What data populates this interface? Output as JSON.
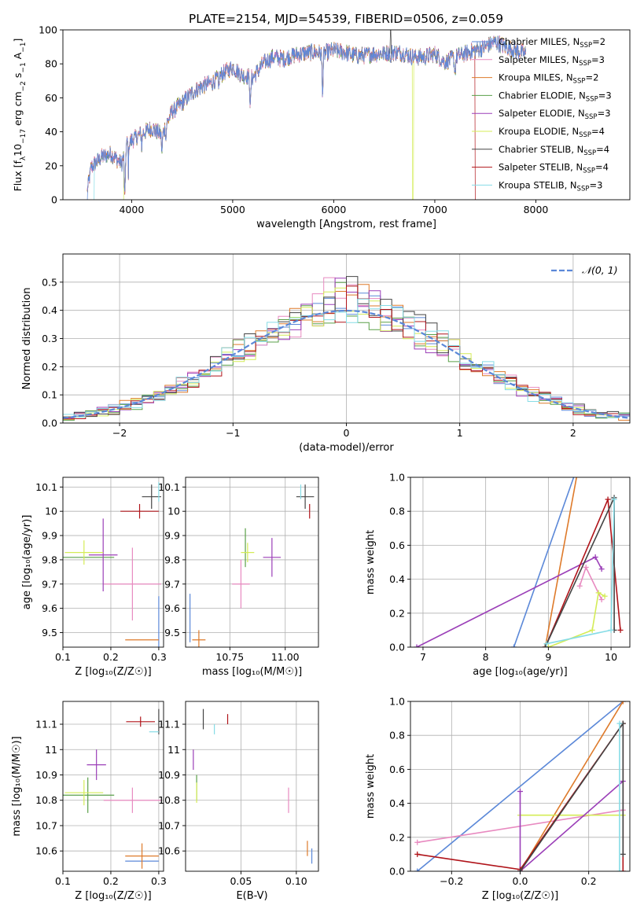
{
  "figure_title": "PLATE=2154, MJD=54539, FIBERID=0506, z=0.059",
  "series": [
    {
      "name": "Chabrier MILES",
      "nssp": "2",
      "color": "#5b88d8"
    },
    {
      "name": "Salpeter MILES",
      "nssp": "3",
      "color": "#e88ac0"
    },
    {
      "name": "Kroupa MILES",
      "nssp": "2",
      "color": "#de7a2a"
    },
    {
      "name": "Chabrier ELODIE",
      "nssp": "3",
      "color": "#5aa048"
    },
    {
      "name": "Salpeter ELODIE",
      "nssp": "3",
      "color": "#9b3fb8"
    },
    {
      "name": "Kroupa ELODIE",
      "nssp": "4",
      "color": "#d4ec57"
    },
    {
      "name": "Chabrier STELIB",
      "nssp": "4",
      "color": "#444444"
    },
    {
      "name": "Salpeter STELIB",
      "nssp": "4",
      "color": "#b0141a"
    },
    {
      "name": "Kroupa STELIB",
      "nssp": "3",
      "color": "#86dce6"
    }
  ],
  "chart_data": [
    {
      "id": "spectrum",
      "type": "line",
      "xlabel": "wavelength [Angstrom, rest frame]",
      "ylabel_prefix": "Flux [f",
      "ylabel_sub": "λ",
      "ylabel_mid": "10",
      "ylabel_sup1": "−17",
      "ylabel_rest": " erg cm",
      "ylabel_sup2": "−2",
      "ylabel_s": " s",
      "ylabel_sup3": "−1",
      "ylabel_A": " A",
      "ylabel_sup4": "−1",
      "ylabel_end": "]",
      "xlim": [
        3320,
        8930
      ],
      "ylim": [
        0,
        100
      ],
      "xticks": [
        4000,
        5000,
        6000,
        7000,
        8000
      ],
      "yticks": [
        0,
        20,
        40,
        60,
        80,
        100
      ],
      "legend_position": "right",
      "continuum": [
        [
          3560,
          5
        ],
        [
          3600,
          19
        ],
        [
          3700,
          25
        ],
        [
          3800,
          27
        ],
        [
          3900,
          21
        ],
        [
          3950,
          33
        ],
        [
          4100,
          39
        ],
        [
          4200,
          42
        ],
        [
          4300,
          38
        ],
        [
          4400,
          52
        ],
        [
          4500,
          57
        ],
        [
          4600,
          63
        ],
        [
          4700,
          67
        ],
        [
          4800,
          69
        ],
        [
          4900,
          74
        ],
        [
          5000,
          78
        ],
        [
          5100,
          73
        ],
        [
          5200,
          72
        ],
        [
          5300,
          80
        ],
        [
          5400,
          84
        ],
        [
          5500,
          83
        ],
        [
          5600,
          85
        ],
        [
          5700,
          86
        ],
        [
          5800,
          87
        ],
        [
          5900,
          86
        ],
        [
          6000,
          88
        ],
        [
          6100,
          87
        ],
        [
          6200,
          85
        ],
        [
          6300,
          85
        ],
        [
          6400,
          86
        ],
        [
          6500,
          86
        ],
        [
          6600,
          87
        ],
        [
          6700,
          86
        ],
        [
          6800,
          84
        ],
        [
          6900,
          84
        ],
        [
          7000,
          86
        ],
        [
          7100,
          81
        ],
        [
          7200,
          84
        ],
        [
          7300,
          86
        ],
        [
          7400,
          88
        ],
        [
          7500,
          90
        ],
        [
          7600,
          93
        ],
        [
          7700,
          90
        ],
        [
          7800,
          88
        ],
        [
          7900,
          86
        ]
      ],
      "dips": [
        [
          3933,
          5,
          28
        ],
        [
          3968,
          3,
          18
        ],
        [
          4101,
          3,
          8
        ],
        [
          4300,
          4,
          10
        ],
        [
          4340,
          3,
          8
        ],
        [
          4861,
          3,
          8
        ],
        [
          5175,
          5,
          18
        ],
        [
          5890,
          5,
          22
        ],
        [
          6563,
          3,
          8
        ],
        [
          7200,
          6,
          8
        ]
      ],
      "dropouts": [
        {
          "series": 0,
          "x_end": 3560
        },
        {
          "series": 5,
          "x_end": 3920
        },
        {
          "series": 5,
          "x_start": 6780,
          "x_end": 6790
        },
        {
          "series": 7,
          "x_start": 7400
        },
        {
          "series": 8,
          "x_end": 3630
        }
      ]
    },
    {
      "id": "residual_hist",
      "type": "histogram",
      "xlabel": "(data-model)/error",
      "ylabel": "Normed distribution",
      "xlim": [
        -2.5,
        2.5
      ],
      "ylim": [
        0,
        0.6
      ],
      "xticks": [
        -2,
        -1,
        0,
        1,
        2
      ],
      "yticks": [
        0.0,
        0.1,
        0.2,
        0.3,
        0.4,
        0.5
      ],
      "bin_start": -2.5,
      "bin_width": 0.1,
      "legend_label": "𝒩(0, 1)",
      "legend_position": "top-right",
      "gauss_color": "#5b88d8"
    },
    {
      "id": "age_vs_Z",
      "type": "errorbar",
      "xlabel": "Z [log₁₀(Z/Z☉)]",
      "ylabel": "age  [log₁₀(age/yr)]",
      "xlim": [
        0.1,
        0.31
      ],
      "ylim": [
        9.44,
        10.14
      ],
      "xticks": [
        0.1,
        0.2,
        0.3
      ],
      "yticks": [
        9.5,
        9.6,
        9.7,
        9.8,
        9.9,
        10.0,
        10.1
      ],
      "points": [
        {
          "s": 0,
          "x": 0.3,
          "y": 9.5,
          "ex": 0.0,
          "ey": 0.15
        },
        {
          "s": 1,
          "x": 0.245,
          "y": 9.7,
          "ex": 0.06,
          "ey": 0.15
        },
        {
          "s": 2,
          "x": 0.265,
          "y": 9.47,
          "ex": 0.035,
          "ey": 0.0
        },
        {
          "s": 3,
          "x": 0.152,
          "y": 9.81,
          "ex": 0.055,
          "ey": 0.0
        },
        {
          "s": 4,
          "x": 0.184,
          "y": 9.82,
          "ex": 0.03,
          "ey": 0.15
        },
        {
          "s": 5,
          "x": 0.144,
          "y": 9.83,
          "ex": 0.04,
          "ey": 0.05
        },
        {
          "s": 6,
          "x": 0.285,
          "y": 10.06,
          "ex": 0.02,
          "ey": 0.05
        },
        {
          "s": 7,
          "x": 0.26,
          "y": 10.0,
          "ex": 0.04,
          "ey": 0.03
        },
        {
          "s": 8,
          "x": 0.3,
          "y": 10.08,
          "ex": 0.0,
          "ey": 0.04
        }
      ]
    },
    {
      "id": "age_vs_mass",
      "type": "errorbar",
      "xlabel": "mass [log₁₀(M/M☉)]",
      "ylabel": "",
      "xlim": [
        10.55,
        11.15
      ],
      "ylim": [
        9.44,
        10.14
      ],
      "xticks": [
        10.75,
        11.0
      ],
      "xticklabels": [
        "10.75",
        "11.00"
      ],
      "yticks": [
        9.5,
        9.6,
        9.7,
        9.8,
        9.9,
        10.0,
        10.1
      ],
      "points": [
        {
          "s": 0,
          "x": 10.57,
          "y": 9.56,
          "ex": 0.0,
          "ey": 0.1
        },
        {
          "s": 1,
          "x": 10.8,
          "y": 9.7,
          "ex": 0.04,
          "ey": 0.1
        },
        {
          "s": 2,
          "x": 10.61,
          "y": 9.47,
          "ex": 0.03,
          "ey": 0.04
        },
        {
          "s": 3,
          "x": 10.82,
          "y": 9.85,
          "ex": 0.0,
          "ey": 0.08
        },
        {
          "s": 4,
          "x": 10.94,
          "y": 9.81,
          "ex": 0.04,
          "ey": 0.08
        },
        {
          "s": 5,
          "x": 10.83,
          "y": 9.83,
          "ex": 0.03,
          "ey": 0.04
        },
        {
          "s": 6,
          "x": 11.09,
          "y": 10.06,
          "ex": 0.04,
          "ey": 0.05
        },
        {
          "s": 7,
          "x": 11.11,
          "y": 10.0,
          "ex": 0.0,
          "ey": 0.03
        },
        {
          "s": 8,
          "x": 11.07,
          "y": 10.08,
          "ex": 0.0,
          "ey": 0.03
        }
      ]
    },
    {
      "id": "weight_vs_age",
      "type": "line",
      "xlabel": "age  [log₁₀(age/yr)]",
      "ylabel": "mass weight",
      "xlim": [
        6.8,
        10.3
      ],
      "ylim": [
        0,
        1.0
      ],
      "xticks": [
        7,
        8,
        9,
        10
      ],
      "yticks": [
        0.0,
        0.2,
        0.4,
        0.6,
        0.8,
        1.0
      ],
      "lines": [
        {
          "s": 0,
          "pts": [
            [
              8.45,
              0.0
            ],
            [
              9.5,
              1.1
            ]
          ]
        },
        {
          "s": 2,
          "pts": [
            [
              8.95,
              0.0
            ],
            [
              9.5,
              1.1
            ]
          ]
        },
        {
          "s": 1,
          "pts": [
            [
              9.5,
              0.36
            ],
            [
              9.6,
              0.47
            ],
            [
              9.85,
              0.28
            ]
          ]
        },
        {
          "s": 5,
          "pts": [
            [
              9.0,
              0.0
            ],
            [
              9.7,
              0.1
            ],
            [
              9.8,
              0.32
            ],
            [
              9.9,
              0.3
            ]
          ]
        },
        {
          "s": 4,
          "pts": [
            [
              6.9,
              0.0
            ],
            [
              9.75,
              0.53
            ],
            [
              9.85,
              0.46
            ]
          ]
        },
        {
          "s": 7,
          "pts": [
            [
              8.95,
              0.0
            ],
            [
              9.95,
              0.87
            ],
            [
              10.15,
              0.1
            ]
          ]
        },
        {
          "s": 6,
          "pts": [
            [
              8.95,
              0.0
            ],
            [
              10.05,
              0.88
            ],
            [
              10.05,
              0.1
            ]
          ]
        },
        {
          "s": 8,
          "pts": [
            [
              8.97,
              0.02
            ],
            [
              10.0,
              0.1
            ],
            [
              10.05,
              0.87
            ]
          ]
        }
      ]
    },
    {
      "id": "mass_vs_Z",
      "type": "errorbar",
      "xlabel": "Z [log₁₀(Z/Z☉)]",
      "ylabel": "mass [log₁₀(M/M☉)]",
      "xlim": [
        0.1,
        0.31
      ],
      "ylim": [
        10.52,
        11.19
      ],
      "xticks": [
        0.1,
        0.2,
        0.3
      ],
      "yticks": [
        10.6,
        10.7,
        10.8,
        10.9,
        11.0,
        11.1
      ],
      "points": [
        {
          "s": 0,
          "x": 0.265,
          "y": 10.56,
          "ex": 0.035,
          "ey": 0.0
        },
        {
          "s": 1,
          "x": 0.245,
          "y": 10.8,
          "ex": 0.06,
          "ey": 0.05
        },
        {
          "s": 2,
          "x": 0.265,
          "y": 10.58,
          "ex": 0.035,
          "ey": 0.05
        },
        {
          "s": 3,
          "x": 0.152,
          "y": 10.82,
          "ex": 0.055,
          "ey": 0.07
        },
        {
          "s": 4,
          "x": 0.17,
          "y": 10.94,
          "ex": 0.02,
          "ey": 0.06
        },
        {
          "s": 5,
          "x": 0.144,
          "y": 10.83,
          "ex": 0.04,
          "ey": 0.05
        },
        {
          "s": 6,
          "x": 0.3,
          "y": 11.11,
          "ex": 0.0,
          "ey": 0.05
        },
        {
          "s": 7,
          "x": 0.262,
          "y": 11.11,
          "ex": 0.03,
          "ey": 0.02
        },
        {
          "s": 8,
          "x": 0.29,
          "y": 11.07,
          "ex": 0.01,
          "ey": 0.0
        }
      ]
    },
    {
      "id": "mass_vs_ebv",
      "type": "errorbar",
      "xlabel": "E(B-V)",
      "ylabel": "",
      "xlim": [
        0.0,
        0.12
      ],
      "ylim": [
        10.52,
        11.19
      ],
      "xticks": [
        0.05,
        0.1
      ],
      "xticklabels": [
        "0.05",
        "0.10"
      ],
      "yticks": [
        10.6,
        10.7,
        10.8,
        10.9,
        11.0,
        11.1
      ],
      "points": [
        {
          "s": 0,
          "x": 0.114,
          "y": 10.58,
          "ex": 0.0,
          "ey": 0.03
        },
        {
          "s": 1,
          "x": 0.093,
          "y": 10.8,
          "ex": 0.0,
          "ey": 0.05
        },
        {
          "s": 2,
          "x": 0.11,
          "y": 10.61,
          "ex": 0.0,
          "ey": 0.03
        },
        {
          "s": 3,
          "x": 0.01,
          "y": 10.85,
          "ex": 0.0,
          "ey": 0.05
        },
        {
          "s": 4,
          "x": 0.007,
          "y": 10.96,
          "ex": 0.0,
          "ey": 0.04
        },
        {
          "s": 5,
          "x": 0.01,
          "y": 10.83,
          "ex": 0.0,
          "ey": 0.04
        },
        {
          "s": 6,
          "x": 0.016,
          "y": 11.12,
          "ex": 0.0,
          "ey": 0.04
        },
        {
          "s": 7,
          "x": 0.038,
          "y": 11.12,
          "ex": 0.0,
          "ey": 0.02
        },
        {
          "s": 8,
          "x": 0.026,
          "y": 11.08,
          "ex": 0.0,
          "ey": 0.02
        }
      ]
    },
    {
      "id": "weight_vs_Z",
      "type": "line",
      "xlabel": "Z [log₁₀(Z/Z☉)]",
      "ylabel": "mass weight",
      "xlim": [
        -0.32,
        0.32
      ],
      "ylim": [
        0,
        1.0
      ],
      "xticks": [
        -0.2,
        0.0,
        0.2
      ],
      "xticklabels": [
        "−0.2",
        "0.0",
        "0.2"
      ],
      "yticks": [
        0.0,
        0.2,
        0.4,
        0.6,
        0.8,
        1.0
      ],
      "lines": [
        {
          "s": 0,
          "pts": [
            [
              -0.3,
              0.0
            ],
            [
              0.3,
              1.0
            ]
          ]
        },
        {
          "s": 1,
          "pts": [
            [
              -0.3,
              0.17
            ],
            [
              0.3,
              0.36
            ]
          ]
        },
        {
          "s": 2,
          "pts": [
            [
              0.0,
              0.0
            ],
            [
              0.3,
              1.0
            ]
          ]
        },
        {
          "s": 5,
          "pts": [
            [
              0.0,
              0.33
            ],
            [
              0.3,
              0.33
            ]
          ]
        },
        {
          "s": 4,
          "pts": [
            [
              0.0,
              0.47
            ],
            [
              0.0,
              0.0
            ],
            [
              0.3,
              0.53
            ]
          ]
        },
        {
          "s": 7,
          "pts": [
            [
              -0.3,
              0.1
            ],
            [
              0.0,
              0.01
            ],
            [
              0.3,
              0.87
            ],
            [
              0.3,
              0.0
            ]
          ]
        },
        {
          "s": 6,
          "pts": [
            [
              0.0,
              0.0
            ],
            [
              0.3,
              0.87
            ],
            [
              0.3,
              0.1
            ]
          ]
        },
        {
          "s": 8,
          "pts": [
            [
              0.29,
              0.0
            ],
            [
              0.29,
              0.87
            ]
          ]
        }
      ]
    }
  ]
}
